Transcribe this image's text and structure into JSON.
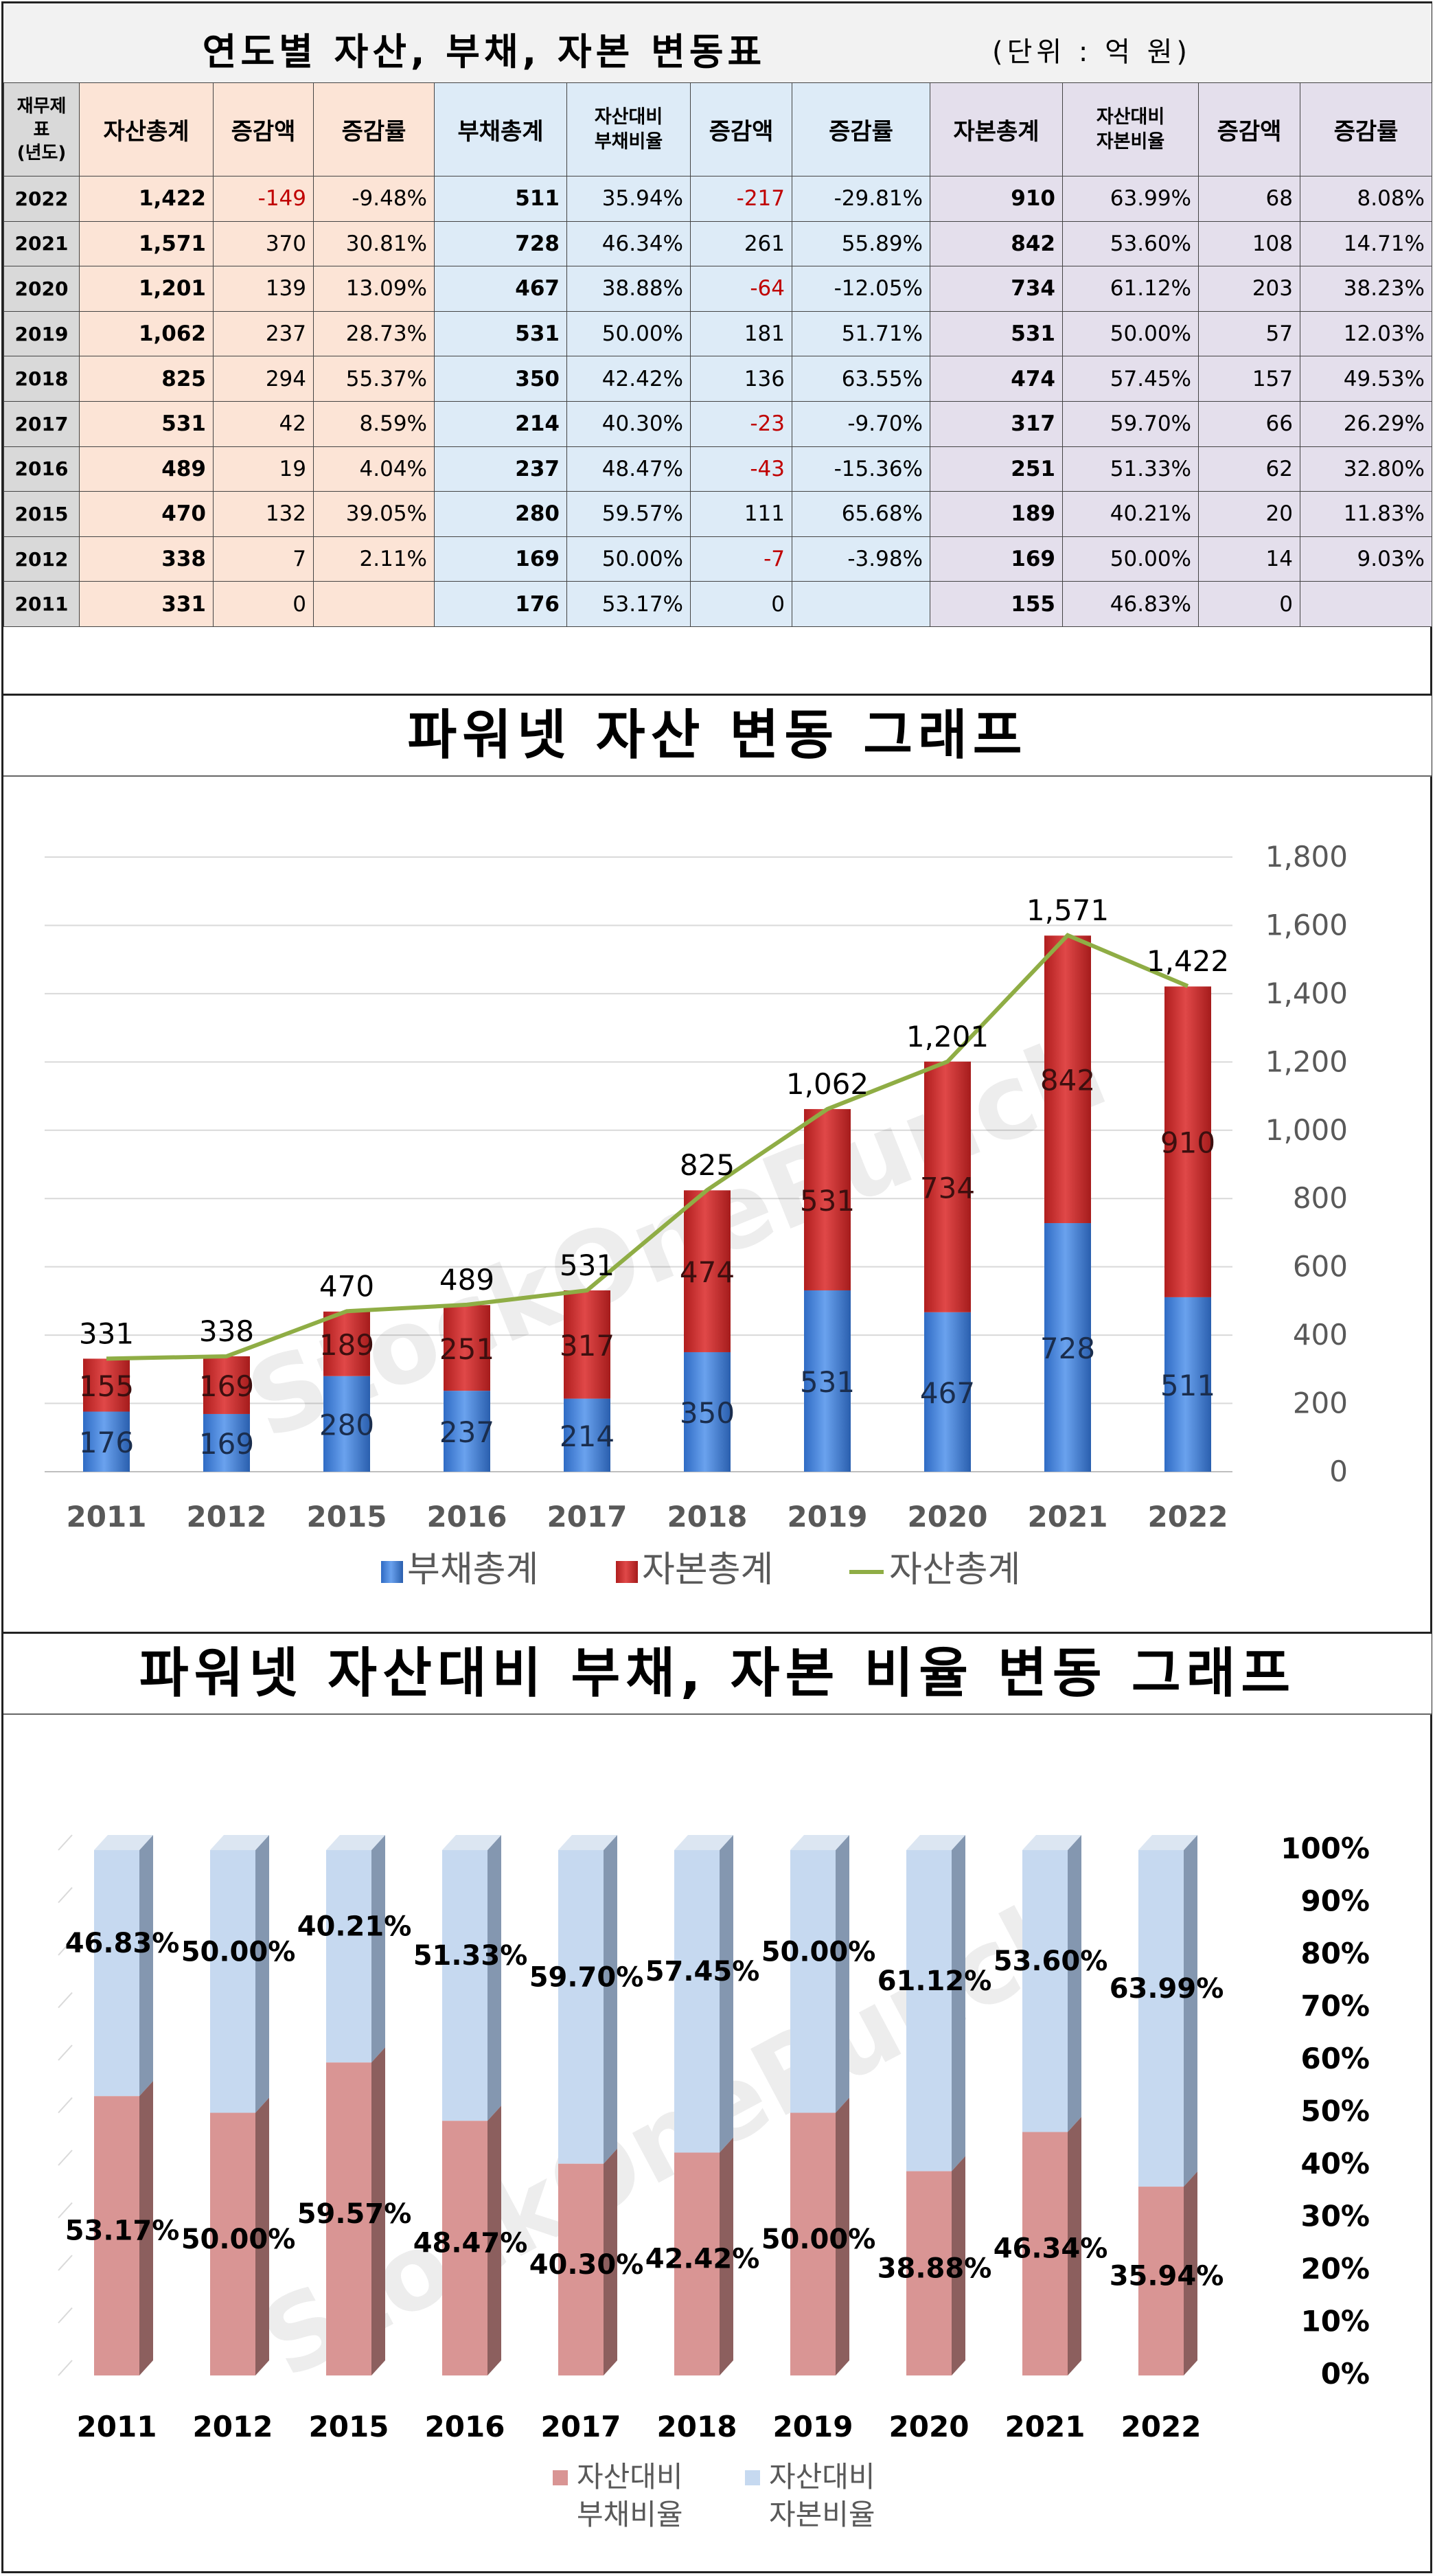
{
  "table": {
    "title": "연도별 자산, 부채, 자본 변동표",
    "unit": "(단위 : 억 원)",
    "headers": {
      "year": "재무제표(년도)",
      "asset_total": "자산총계",
      "asset_change": "증감액",
      "asset_rate": "증감률",
      "debt_total": "부채총계",
      "debt_ratio": "자산대비 부채비율",
      "debt_change": "증감액",
      "debt_rate": "증감률",
      "equity_total": "자본총계",
      "equity_ratio": "자산대비 자본비율",
      "equity_change": "증감액",
      "equity_rate": "증감률"
    },
    "rows": [
      {
        "year": "2022",
        "asset": "1,422",
        "asset_chg": "-149",
        "asset_rate": "-9.48%",
        "debt": "511",
        "debt_ratio": "35.94%",
        "debt_chg": "-217",
        "debt_rate": "-29.81%",
        "equity": "910",
        "equity_ratio": "63.99%",
        "equity_chg": "68",
        "equity_rate": "8.08%"
      },
      {
        "year": "2021",
        "asset": "1,571",
        "asset_chg": "370",
        "asset_rate": "30.81%",
        "debt": "728",
        "debt_ratio": "46.34%",
        "debt_chg": "261",
        "debt_rate": "55.89%",
        "equity": "842",
        "equity_ratio": "53.60%",
        "equity_chg": "108",
        "equity_rate": "14.71%"
      },
      {
        "year": "2020",
        "asset": "1,201",
        "asset_chg": "139",
        "asset_rate": "13.09%",
        "debt": "467",
        "debt_ratio": "38.88%",
        "debt_chg": "-64",
        "debt_rate": "-12.05%",
        "equity": "734",
        "equity_ratio": "61.12%",
        "equity_chg": "203",
        "equity_rate": "38.23%"
      },
      {
        "year": "2019",
        "asset": "1,062",
        "asset_chg": "237",
        "asset_rate": "28.73%",
        "debt": "531",
        "debt_ratio": "50.00%",
        "debt_chg": "181",
        "debt_rate": "51.71%",
        "equity": "531",
        "equity_ratio": "50.00%",
        "equity_chg": "57",
        "equity_rate": "12.03%"
      },
      {
        "year": "2018",
        "asset": "825",
        "asset_chg": "294",
        "asset_rate": "55.37%",
        "debt": "350",
        "debt_ratio": "42.42%",
        "debt_chg": "136",
        "debt_rate": "63.55%",
        "equity": "474",
        "equity_ratio": "57.45%",
        "equity_chg": "157",
        "equity_rate": "49.53%"
      },
      {
        "year": "2017",
        "asset": "531",
        "asset_chg": "42",
        "asset_rate": "8.59%",
        "debt": "214",
        "debt_ratio": "40.30%",
        "debt_chg": "-23",
        "debt_rate": "-9.70%",
        "equity": "317",
        "equity_ratio": "59.70%",
        "equity_chg": "66",
        "equity_rate": "26.29%"
      },
      {
        "year": "2016",
        "asset": "489",
        "asset_chg": "19",
        "asset_rate": "4.04%",
        "debt": "237",
        "debt_ratio": "48.47%",
        "debt_chg": "-43",
        "debt_rate": "-15.36%",
        "equity": "251",
        "equity_ratio": "51.33%",
        "equity_chg": "62",
        "equity_rate": "32.80%"
      },
      {
        "year": "2015",
        "asset": "470",
        "asset_chg": "132",
        "asset_rate": "39.05%",
        "debt": "280",
        "debt_ratio": "59.57%",
        "debt_chg": "111",
        "debt_rate": "65.68%",
        "equity": "189",
        "equity_ratio": "40.21%",
        "equity_chg": "20",
        "equity_rate": "11.83%"
      },
      {
        "year": "2012",
        "asset": "338",
        "asset_chg": "7",
        "asset_rate": "2.11%",
        "debt": "169",
        "debt_ratio": "50.00%",
        "debt_chg": "-7",
        "debt_rate": "-3.98%",
        "equity": "169",
        "equity_ratio": "50.00%",
        "equity_chg": "14",
        "equity_rate": "9.03%"
      },
      {
        "year": "2011",
        "asset": "331",
        "asset_chg": "0",
        "asset_rate": "",
        "debt": "176",
        "debt_ratio": "53.17%",
        "debt_chg": "0",
        "debt_rate": "",
        "equity": "155",
        "equity_ratio": "46.83%",
        "equity_chg": "0",
        "equity_rate": ""
      }
    ],
    "colors": {
      "asset": "#fce4d6",
      "debt": "#ddebf7",
      "equity": "#e4dfec",
      "year": "#d9d9d9",
      "negative": "#c00000"
    }
  },
  "chart_data": [
    {
      "type": "bar",
      "stacked": true,
      "title": "파워넷 자산 변동 그래프",
      "watermark": "StockOnePunch",
      "categories": [
        "2011",
        "2012",
        "2015",
        "2016",
        "2017",
        "2018",
        "2019",
        "2020",
        "2021",
        "2022"
      ],
      "series": [
        {
          "name": "부채총계",
          "kind": "bar",
          "color": "#4a86e0",
          "values": [
            176,
            169,
            280,
            237,
            214,
            350,
            531,
            467,
            728,
            511
          ]
        },
        {
          "name": "자본총계",
          "kind": "bar",
          "color": "#d02c2c",
          "values": [
            155,
            169,
            189,
            251,
            317,
            474,
            531,
            734,
            842,
            910
          ]
        },
        {
          "name": "자산총계",
          "kind": "line",
          "color": "#8fad45",
          "values": [
            331,
            338,
            470,
            489,
            531,
            825,
            1062,
            1201,
            1571,
            1422
          ]
        }
      ],
      "total_labels": [
        "331",
        "338",
        "470",
        "489",
        "531",
        "825",
        "1,062",
        "1,201",
        "1,571",
        "1,422"
      ],
      "yaxis_side": "right",
      "ylim": [
        0,
        1800
      ],
      "yticks": [
        "0",
        "200",
        "400",
        "600",
        "800",
        "1,000",
        "1,200",
        "1,400",
        "1,600",
        "1,800"
      ],
      "ytick_values": [
        0,
        200,
        400,
        600,
        800,
        1000,
        1200,
        1400,
        1600,
        1800
      ],
      "grid": true,
      "legend_position": "bottom",
      "legend": [
        "부채총계",
        "자본총계",
        "자산총계"
      ]
    },
    {
      "type": "bar",
      "stacked": true,
      "percent": true,
      "title": "파워넷 자산대비 부채, 자본 비율 변동 그래프",
      "watermark": "StockOnePunch",
      "categories": [
        "2011",
        "2012",
        "2015",
        "2016",
        "2017",
        "2018",
        "2019",
        "2020",
        "2021",
        "2022"
      ],
      "series": [
        {
          "name": "자산대비 부채비율",
          "color": "#d99594",
          "values": [
            53.17,
            50.0,
            59.57,
            48.47,
            40.3,
            42.42,
            50.0,
            38.88,
            46.34,
            35.94
          ]
        },
        {
          "name": "자산대비 자본비율",
          "color": "#c6d9f0",
          "values": [
            46.83,
            50.0,
            40.21,
            51.33,
            59.7,
            57.45,
            50.0,
            61.12,
            53.6,
            63.99
          ]
        }
      ],
      "debt_labels": [
        "53.17%",
        "50.00%",
        "59.57%",
        "48.47%",
        "40.30%",
        "42.42%",
        "50.00%",
        "38.88%",
        "46.34%",
        "35.94%"
      ],
      "equity_labels": [
        "46.83%",
        "50.00%",
        "40.21%",
        "51.33%",
        "59.70%",
        "57.45%",
        "50.00%",
        "61.12%",
        "53.60%",
        "63.99%"
      ],
      "yaxis_side": "right",
      "ylim": [
        0,
        100
      ],
      "yticks": [
        "0%",
        "10%",
        "20%",
        "30%",
        "40%",
        "50%",
        "60%",
        "70%",
        "80%",
        "90%",
        "100%"
      ],
      "ytick_values": [
        0,
        10,
        20,
        30,
        40,
        50,
        60,
        70,
        80,
        90,
        100
      ],
      "legend_position": "bottom",
      "legend": [
        {
          "line1": "자산대비",
          "line2": "부채비율"
        },
        {
          "line1": "자산대비",
          "line2": "자본비율"
        }
      ]
    }
  ]
}
